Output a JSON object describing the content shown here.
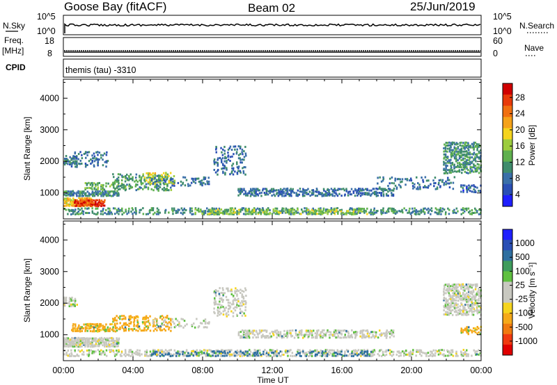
{
  "header": {
    "station": "Goose Bay (fitACF)",
    "beam": "Beam 02",
    "date": "25/Jun/2019"
  },
  "panels": {
    "nsky_label": "N.Sky",
    "nsky_ticks": [
      "10^5",
      "10^0"
    ],
    "nsearch_label": "N.Search",
    "nsearch_ticks": [
      "10^5",
      "10^0"
    ],
    "freq_label_1": "Freq.",
    "freq_label_2": "[MHz]",
    "freq_ticks": [
      "18",
      "8"
    ],
    "nave_label": "Nave",
    "nave_ticks": [
      "60",
      "0"
    ],
    "cpid_label": "CPID",
    "cpid_text": "themis (tau) -3310"
  },
  "colors": {
    "power_scale": [
      "#1f1fff",
      "#2a4fb5",
      "#3a6fa8",
      "#3f8c6c",
      "#5fb04f",
      "#9ccc3e",
      "#f5d41e",
      "#f5a21a",
      "#f06f10",
      "#e83a0a",
      "#d00000"
    ],
    "velocity_scale": [
      "#e00000",
      "#f03a10",
      "#f07a10",
      "#f5a91a",
      "#f5d41e",
      "#c8c8c0",
      "#c8c8c0",
      "#5fc040",
      "#3f9c5c",
      "#2f6fa0",
      "#2a4fb5",
      "#1f1fff"
    ]
  },
  "chart_data": [
    {
      "type": "heatmap",
      "name": "power",
      "ylabel": "Slant Range [km]",
      "ylim": [
        180,
        4600
      ],
      "yticks": [
        "4000",
        "3000",
        "2000",
        "1000"
      ],
      "xlim": [
        0,
        24
      ],
      "colorbar_label": "Power [dB]",
      "colorbar_ticks": [
        "28",
        "24",
        "20",
        "16",
        "12",
        "8",
        "4"
      ],
      "clim": [
        0,
        30
      ],
      "regions": [
        {
          "t": [
            0.0,
            0.8
          ],
          "r": [
            1880,
            2180
          ],
          "v": 7,
          "density": 0.5
        },
        {
          "t": [
            0.4,
            2.6
          ],
          "r": [
            1800,
            2300
          ],
          "v": 6,
          "density": 0.25
        },
        {
          "t": [
            0.0,
            1.6
          ],
          "r": [
            560,
            840
          ],
          "v": 19,
          "density": 0.9
        },
        {
          "t": [
            0.6,
            2.4
          ],
          "r": [
            560,
            780
          ],
          "v": 27,
          "density": 0.85
        },
        {
          "t": [
            0.0,
            3.2
          ],
          "r": [
            880,
            1060
          ],
          "v": 8,
          "density": 0.8
        },
        {
          "t": [
            1.2,
            3.6
          ],
          "r": [
            1080,
            1320
          ],
          "v": 12,
          "density": 0.55
        },
        {
          "t": [
            2.8,
            6.2
          ],
          "r": [
            1050,
            1600
          ],
          "v": 10,
          "density": 0.4
        },
        {
          "t": [
            4.6,
            6.4
          ],
          "r": [
            1260,
            1640
          ],
          "v": 16,
          "density": 0.4
        },
        {
          "t": [
            5.0,
            8.4
          ],
          "r": [
            1200,
            1500
          ],
          "v": 6,
          "density": 0.3
        },
        {
          "t": [
            8.6,
            10.5
          ],
          "r": [
            1560,
            2480
          ],
          "v": 6,
          "density": 0.3
        },
        {
          "t": [
            10.0,
            19.0
          ],
          "r": [
            880,
            1140
          ],
          "v": 6,
          "density": 0.55
        },
        {
          "t": [
            0.0,
            24.0
          ],
          "r": [
            300,
            520
          ],
          "v": 9,
          "density": 0.45
        },
        {
          "t": [
            7.5,
            17.5
          ],
          "r": [
            300,
            480
          ],
          "v": 14,
          "density": 0.45
        },
        {
          "t": [
            18.0,
            22.5
          ],
          "r": [
            1100,
            1500
          ],
          "v": 6,
          "density": 0.25
        },
        {
          "t": [
            21.8,
            24.0
          ],
          "r": [
            1600,
            2600
          ],
          "v": 9,
          "density": 0.55
        },
        {
          "t": [
            22.8,
            24.0
          ],
          "r": [
            1000,
            1250
          ],
          "v": 5,
          "density": 0.5
        }
      ]
    },
    {
      "type": "heatmap",
      "name": "velocity",
      "ylabel": "Slant Range [km]",
      "ylim": [
        180,
        4600
      ],
      "yticks": [
        "4000",
        "3000",
        "2000",
        "1000"
      ],
      "xlabel": "Time UT",
      "xticks": [
        "00:00",
        "04:00",
        "08:00",
        "12:00",
        "16:00",
        "20:00",
        "00:00"
      ],
      "xlim": [
        0,
        24
      ],
      "colorbar_label": "Velocity [m s⁻¹]",
      "colorbar_ticks": [
        "1000",
        "500",
        "100",
        "25",
        "-25",
        "-100",
        "-500",
        "-1000"
      ],
      "regions": [
        {
          "t": [
            0.0,
            0.8
          ],
          "r": [
            1880,
            2180
          ],
          "v": 0,
          "density": 0.6
        },
        {
          "t": [
            0.0,
            3.2
          ],
          "r": [
            600,
            900
          ],
          "v": 0,
          "density": 0.85
        },
        {
          "t": [
            0.4,
            3.0
          ],
          "r": [
            1080,
            1340
          ],
          "v": -150,
          "density": 0.5
        },
        {
          "t": [
            2.8,
            6.2
          ],
          "r": [
            1100,
            1600
          ],
          "v": -200,
          "density": 0.45
        },
        {
          "t": [
            5.0,
            8.4
          ],
          "r": [
            1200,
            1500
          ],
          "v": 0,
          "density": 0.3
        },
        {
          "t": [
            8.6,
            10.5
          ],
          "r": [
            1560,
            2480
          ],
          "v": 0,
          "density": 0.35
        },
        {
          "t": [
            10.0,
            19.0
          ],
          "r": [
            880,
            1140
          ],
          "v": 0,
          "density": 0.55
        },
        {
          "t": [
            0.0,
            24.0
          ],
          "r": [
            300,
            520
          ],
          "v": 0,
          "density": 0.5
        },
        {
          "t": [
            5.0,
            18.0
          ],
          "r": [
            300,
            480
          ],
          "v": 120,
          "density": 0.3
        },
        {
          "t": [
            21.8,
            24.0
          ],
          "r": [
            1600,
            2600
          ],
          "v": 0,
          "density": 0.6
        },
        {
          "t": [
            22.8,
            24.0
          ],
          "r": [
            1000,
            1250
          ],
          "v": -150,
          "density": 0.5
        }
      ]
    }
  ]
}
